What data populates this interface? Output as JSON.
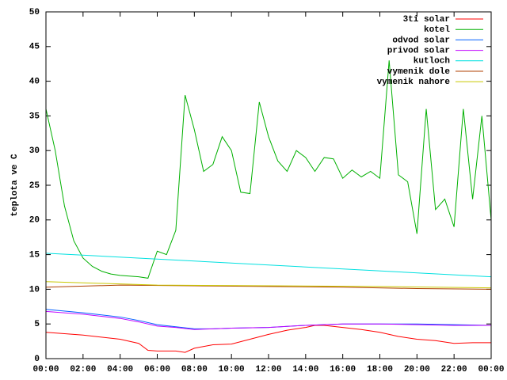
{
  "chart_data": {
    "type": "line",
    "ylabel": "teplota ve C",
    "xlim": [
      0,
      24
    ],
    "ylim": [
      0,
      50
    ],
    "xticks": [
      {
        "value": 0,
        "label": "00:00"
      },
      {
        "value": 2,
        "label": "02:00"
      },
      {
        "value": 4,
        "label": "04:00"
      },
      {
        "value": 6,
        "label": "06:00"
      },
      {
        "value": 8,
        "label": "08:00"
      },
      {
        "value": 10,
        "label": "10:00"
      },
      {
        "value": 12,
        "label": "12:00"
      },
      {
        "value": 14,
        "label": "14:00"
      },
      {
        "value": 16,
        "label": "16:00"
      },
      {
        "value": 18,
        "label": "18:00"
      },
      {
        "value": 20,
        "label": "20:00"
      },
      {
        "value": 22,
        "label": "22:00"
      },
      {
        "value": 24,
        "label": "00:00"
      }
    ],
    "yticks": [
      0,
      5,
      10,
      15,
      20,
      25,
      30,
      35,
      40,
      45,
      50
    ],
    "legend": "top-right",
    "series": [
      {
        "name": "3ti solar",
        "color": "#ff0000",
        "x": [
          0,
          2,
          4,
          5,
          5.5,
          6,
          7,
          7.5,
          8,
          9,
          10,
          11,
          12,
          13,
          14,
          14.5,
          15,
          16,
          17,
          18,
          19,
          20,
          21,
          22,
          23,
          24
        ],
        "values": [
          3.8,
          3.4,
          2.8,
          2.2,
          1.2,
          1.1,
          1.1,
          0.9,
          1.5,
          2,
          2.1,
          2.8,
          3.5,
          4.1,
          4.5,
          4.8,
          4.8,
          4.5,
          4.2,
          3.8,
          3.2,
          2.8,
          2.6,
          2.2,
          2.3,
          2.3
        ]
      },
      {
        "name": "kotel",
        "color": "#00b000",
        "x": [
          0,
          0.5,
          1,
          1.5,
          2,
          2.5,
          3,
          3.5,
          4,
          4.5,
          5,
          5.5,
          6,
          6.5,
          7,
          7.5,
          8,
          8.5,
          9,
          9.5,
          10,
          10.5,
          11,
          11.5,
          12,
          12.5,
          13,
          13.5,
          14,
          14.5,
          15,
          15.5,
          16,
          16.5,
          17,
          17.5,
          18,
          18.5,
          19,
          19.5,
          20,
          20.5,
          21,
          21.5,
          22,
          22.5,
          23,
          23.5,
          24
        ],
        "values": [
          36,
          30,
          22,
          17,
          14.5,
          13.3,
          12.6,
          12.2,
          12,
          11.9,
          11.8,
          11.6,
          15.5,
          15,
          18.5,
          38,
          33,
          27,
          28,
          32,
          30,
          24,
          23.8,
          37,
          32,
          28.5,
          27,
          30,
          29,
          27,
          29,
          28.8,
          26,
          27.2,
          26.2,
          27,
          26,
          43,
          26.5,
          25.5,
          18,
          36,
          21.5,
          23,
          19,
          36,
          23,
          35,
          20
        ]
      },
      {
        "name": "odvod solar",
        "color": "#0060ff",
        "x": [
          0,
          2,
          4,
          5,
          6,
          7,
          8,
          9,
          10,
          12,
          14,
          16,
          18,
          20,
          22,
          24
        ],
        "values": [
          7.1,
          6.6,
          6,
          5.5,
          4.9,
          4.6,
          4.3,
          4.3,
          4.4,
          4.5,
          4.8,
          5,
          5,
          5,
          4.9,
          4.8
        ]
      },
      {
        "name": "privod solar",
        "color": "#c000ff",
        "x": [
          0,
          2,
          4,
          5,
          6,
          7,
          8,
          9,
          10,
          12,
          14,
          16,
          18,
          20,
          22,
          24
        ],
        "values": [
          6.8,
          6.4,
          5.8,
          5.3,
          4.7,
          4.5,
          4.2,
          4.3,
          4.4,
          4.5,
          4.8,
          5,
          5,
          4.9,
          4.8,
          4.8
        ]
      },
      {
        "name": "kutloch",
        "color": "#00e0e0",
        "x": [
          0,
          24
        ],
        "values": [
          15.2,
          11.8
        ]
      },
      {
        "name": "vymenik dole",
        "color": "#b04000",
        "x": [
          0,
          4,
          8,
          12,
          16,
          20,
          24
        ],
        "values": [
          10.3,
          10.6,
          10.5,
          10.4,
          10.3,
          10.1,
          10
        ]
      },
      {
        "name": "vymenik nahore",
        "color": "#c8c800",
        "x": [
          0,
          6,
          12,
          18,
          24
        ],
        "values": [
          11.1,
          10.6,
          10.5,
          10.4,
          10.2
        ]
      }
    ]
  }
}
